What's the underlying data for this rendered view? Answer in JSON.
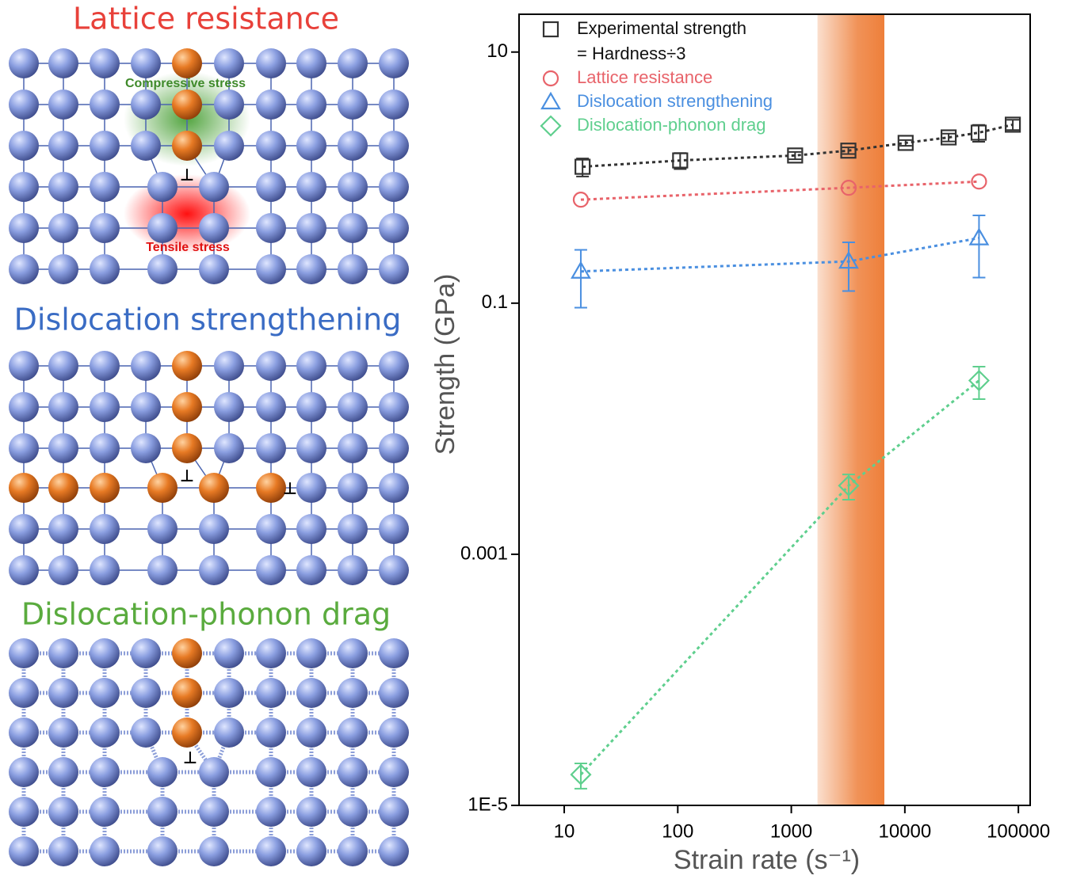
{
  "diagrams": [
    {
      "title": "Lattice resistance",
      "labels": [
        "Compressive stress",
        "Tensile stress"
      ]
    },
    {
      "title": "Dislocation strengthening"
    },
    {
      "title": "Dislocation-phonon drag"
    }
  ],
  "chart_data": {
    "type": "scatter",
    "log_x": true,
    "log_y": true,
    "xlabel": "Strain rate (s⁻¹)",
    "ylabel": "Strength (GPa)",
    "xlim": [
      4,
      127000
    ],
    "ylim": [
      1e-05,
      20
    ],
    "xticks": [
      10,
      100,
      1000,
      10000,
      100000
    ],
    "yticks": [
      10,
      0.1,
      0.001,
      {
        "value": 1e-05,
        "label": "1E-5"
      }
    ],
    "band": [
      1700,
      6600
    ],
    "band_color": "#ee7f3a",
    "legend_note": "= Hardness÷3",
    "series": [
      {
        "name": "Experimental strength",
        "color": "#333333",
        "marker": "square",
        "x": [
          14.5,
          105,
          1080,
          3180,
          10160,
          24300,
          44700,
          89300
        ],
        "values": [
          1.22,
          1.37,
          1.5,
          1.64,
          1.89,
          2.09,
          2.28,
          2.64
        ],
        "errors": [
          0.2,
          0.2,
          0.1,
          0.1,
          0.1,
          0.15,
          0.35,
          0.25
        ]
      },
      {
        "name": "Lattice resistance",
        "color": "#e8636a",
        "marker": "circle",
        "x": [
          14,
          3200,
          45000
        ],
        "values": [
          0.667,
          0.83,
          0.93
        ]
      },
      {
        "name": "Dislocation strengthening",
        "color": "#4a8fe0",
        "marker": "triangle",
        "x": [
          14,
          3200,
          45000
        ],
        "values": [
          0.179,
          0.215,
          0.33
        ],
        "errors": [
          0.087,
          0.09,
          0.17
        ]
      },
      {
        "name": "Dislocation-phonon drag",
        "color": "#5fcf8e",
        "marker": "diamond",
        "x": [
          14,
          3200,
          45000
        ],
        "values": [
          1.76e-05,
          0.00352,
          0.0242
        ],
        "errors": [
          4e-06,
          0.0008,
          0.007
        ]
      }
    ]
  }
}
